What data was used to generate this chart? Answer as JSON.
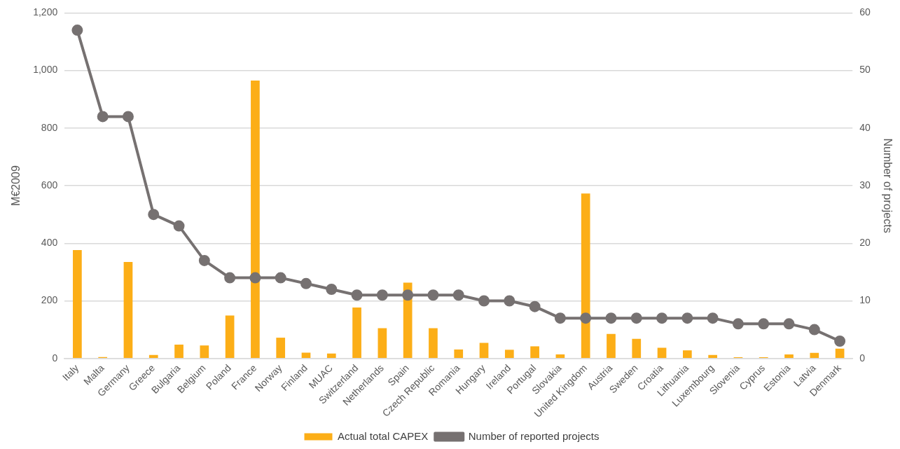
{
  "chart_data": {
    "type": "bar",
    "ylabel": "M€2009",
    "y2label": "Number of projects",
    "categories": [
      "Italy",
      "Malta",
      "Germany",
      "Greece",
      "Bulgaria",
      "Belgium",
      "Poland",
      "France",
      "Norway",
      "Finland",
      "MUAC",
      "Switzerland",
      "Netherlands",
      "Spain",
      "Czech Republic",
      "Romania",
      "Hungary",
      "Ireland",
      "Portugal",
      "Slovakia",
      "United Kingdom",
      "Austria",
      "Sweden",
      "Croatia",
      "Lithuania",
      "Luxembourg",
      "Slovenia",
      "Cyprus",
      "Estonia",
      "Latvia",
      "Denmark"
    ],
    "series": [
      {
        "name": "Actual total CAPEX",
        "color": "#fcae17",
        "values": [
          376,
          5,
          335,
          12,
          48,
          45,
          149,
          965,
          72,
          20,
          17,
          177,
          105,
          263,
          105,
          31,
          54,
          30,
          42,
          14,
          573,
          85,
          68,
          37,
          28,
          12,
          4,
          4,
          14,
          19,
          34
        ]
      },
      {
        "name": "Number of reported projects",
        "type": "line",
        "axis": "y2",
        "color": "#767171",
        "marker": "circle",
        "values": [
          57,
          42,
          42,
          25,
          23,
          17,
          14,
          14,
          14,
          13,
          12,
          11,
          11,
          11,
          11,
          11,
          10,
          10,
          9,
          7,
          7,
          7,
          7,
          7,
          7,
          7,
          6,
          6,
          6,
          5,
          3
        ]
      }
    ],
    "ylim": [
      0,
      1200
    ],
    "yticks": [
      0,
      {
        "value": 200,
        "label": "200"
      },
      {
        "value": 400,
        "label": "400"
      },
      {
        "value": 600,
        "label": "600"
      },
      {
        "value": 800,
        "label": "800"
      },
      {
        "value": 1000,
        "label": "1,000"
      },
      {
        "value": 1200,
        "label": "1,200"
      }
    ],
    "y2lim": [
      0,
      60
    ],
    "y2ticks": [
      0,
      10,
      20,
      30,
      40,
      50,
      60
    ],
    "grid": "y",
    "legend": "bottom"
  }
}
